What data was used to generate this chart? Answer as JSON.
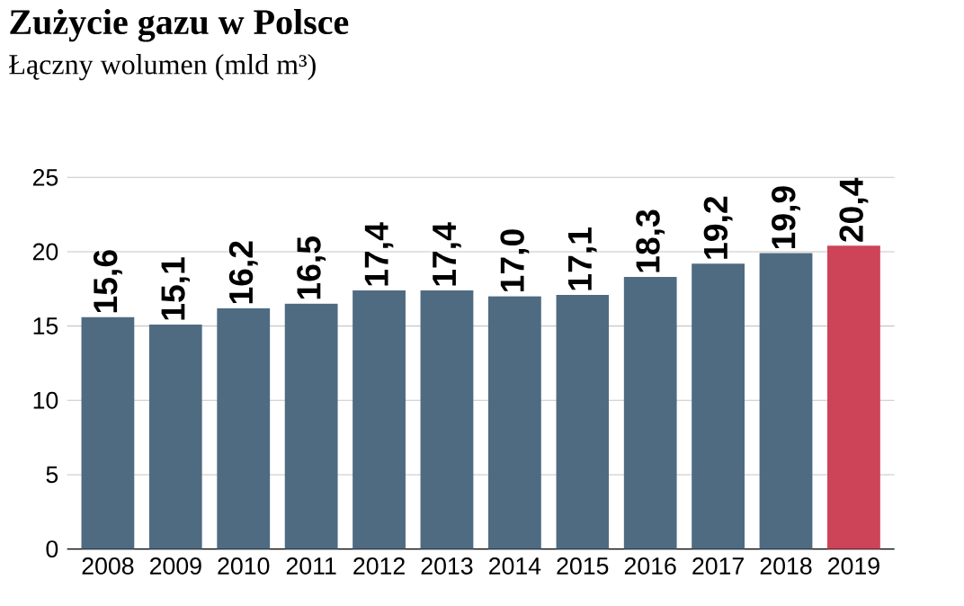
{
  "chart_data": {
    "type": "bar",
    "title": "Zużycie gazu w Polsce",
    "subtitle": "Łączny wolumen (mld m³)",
    "categories": [
      "2008",
      "2009",
      "2010",
      "2011",
      "2012",
      "2013",
      "2014",
      "2015",
      "2016",
      "2017",
      "2018",
      "2019"
    ],
    "values": [
      15.6,
      15.1,
      16.2,
      16.5,
      17.4,
      17.4,
      17.0,
      17.1,
      18.3,
      19.2,
      19.9,
      20.4
    ],
    "value_labels": [
      "15,6",
      "15,1",
      "16,2",
      "16,5",
      "17,4",
      "17,4",
      "17,0",
      "17,1",
      "18,3",
      "19,2",
      "19,9",
      "20,4"
    ],
    "colors": [
      "#4f6b82",
      "#4f6b82",
      "#4f6b82",
      "#4f6b82",
      "#4f6b82",
      "#4f6b82",
      "#4f6b82",
      "#4f6b82",
      "#4f6b82",
      "#4f6b82",
      "#4f6b82",
      "#cd4357"
    ],
    "ylim": [
      0,
      25
    ],
    "yticks": [
      0,
      5,
      10,
      15,
      20,
      25
    ],
    "grid": "y"
  }
}
